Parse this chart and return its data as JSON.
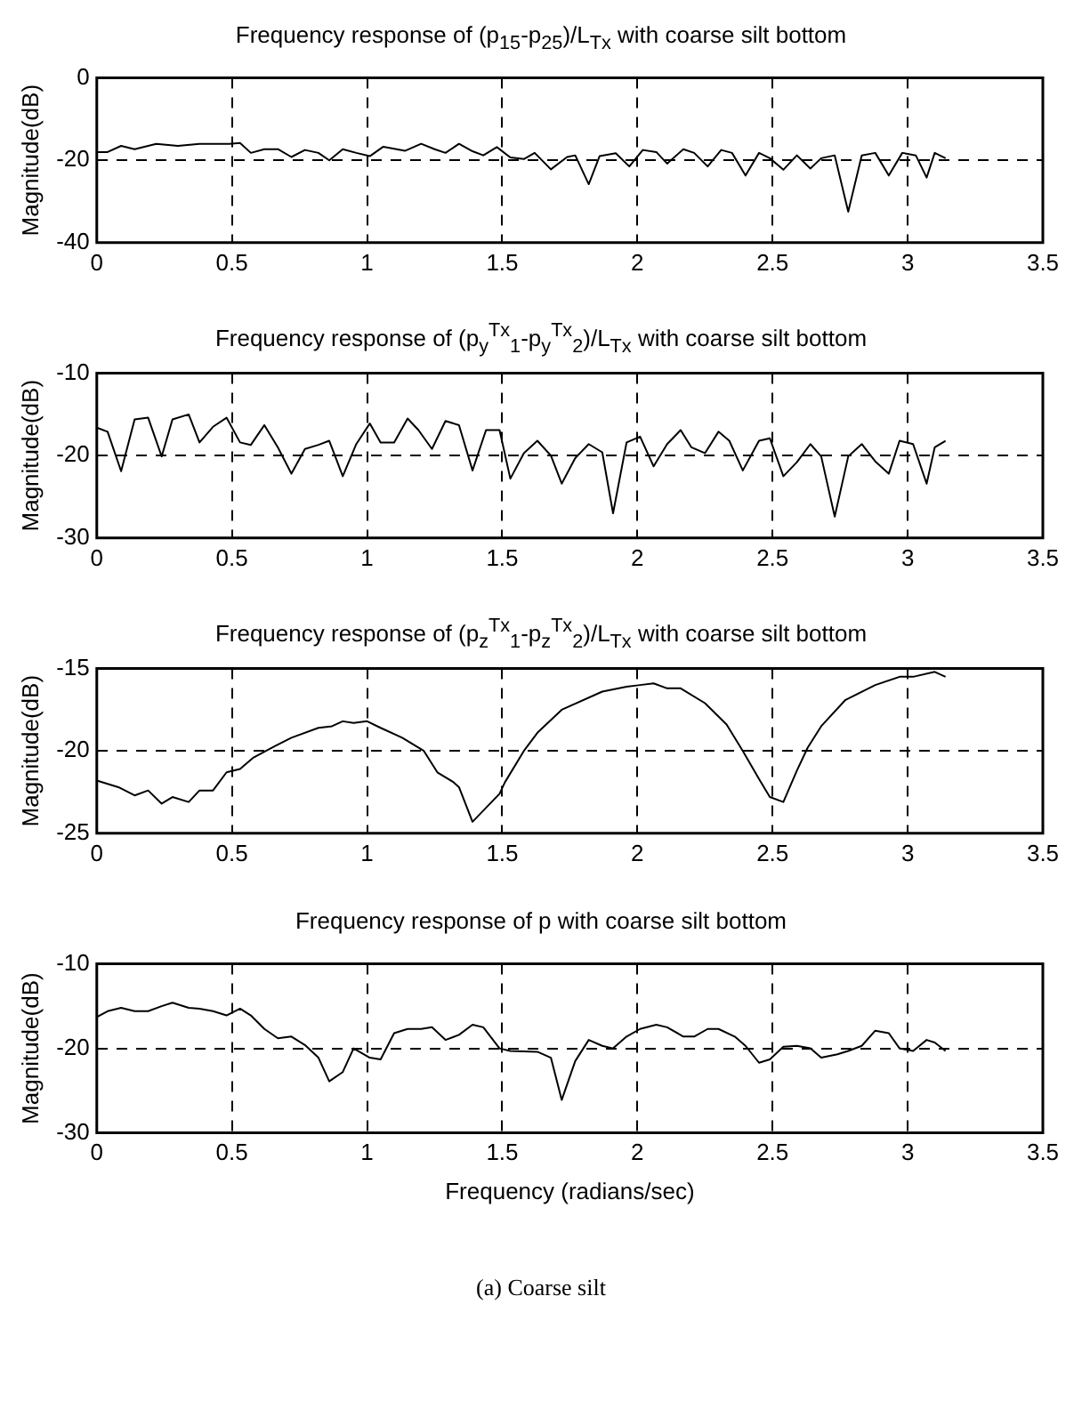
{
  "chart_data": [
    {
      "type": "line",
      "title": "Frequency response of (p$_{15}$-p$_{25}$)/L$_{Tx}$ with coarse silt bottom",
      "ylabel": "Magnitude(dB)",
      "xlim": [
        0,
        3.5
      ],
      "xticks": [
        0,
        0.5,
        1,
        1.5,
        2,
        2.5,
        3,
        3.5
      ],
      "ylim": [
        -40,
        0
      ],
      "yticks": [
        -40,
        -20,
        0
      ],
      "grid": true,
      "legend": false,
      "marker": "none",
      "line_style": "solid",
      "series": [
        {
          "color": "#000000",
          "x": [
            0,
            0.04,
            0.09,
            0.14,
            0.22,
            0.3,
            0.38,
            0.49,
            0.53,
            0.57,
            0.62,
            0.67,
            0.72,
            0.77,
            0.82,
            0.86,
            0.91,
            0.96,
            1.01,
            1.06,
            1.14,
            1.2,
            1.25,
            1.29,
            1.34,
            1.39,
            1.43,
            1.48,
            1.53,
            1.58,
            1.62,
            1.68,
            1.74,
            1.77,
            1.82,
            1.86,
            1.92,
            1.97,
            2.02,
            2.07,
            2.11,
            2.17,
            2.21,
            2.26,
            2.31,
            2.35,
            2.4,
            2.45,
            2.49,
            2.54,
            2.59,
            2.64,
            2.68,
            2.73,
            2.78,
            2.83,
            2.88,
            2.93,
            2.98,
            3.03,
            3.07,
            3.1,
            3.14
          ],
          "values": [
            -18,
            -18,
            -16.5,
            -17.3,
            -16,
            -16.5,
            -16,
            -16,
            -15.8,
            -18.2,
            -17.3,
            -17.3,
            -19.2,
            -17.5,
            -18.2,
            -20,
            -17.3,
            -18.2,
            -19,
            -16.7,
            -17.7,
            -16,
            -17.3,
            -18.2,
            -16,
            -17.8,
            -18.8,
            -16.8,
            -19.3,
            -19.7,
            -18.2,
            -22.2,
            -19.2,
            -18.8,
            -25.8,
            -19,
            -18.3,
            -21.5,
            -17.5,
            -18,
            -20.8,
            -17.3,
            -18.2,
            -21.5,
            -17.5,
            -18.2,
            -23.7,
            -18.2,
            -19.5,
            -22.3,
            -18.8,
            -22,
            -19.5,
            -18.8,
            -32.5,
            -18.8,
            -18.2,
            -23.7,
            -18.2,
            -18.8,
            -24.2,
            -18.2,
            -19.5
          ]
        }
      ]
    },
    {
      "type": "line",
      "title": "Frequency response of (p$_{y}$$^{Tx}$$_{1}$-p$_{y}$$^{Tx}$$_{2}$)/L$_{Tx}$ with coarse silt bottom",
      "ylabel": "Magnitude(dB)",
      "xlim": [
        0,
        3.5
      ],
      "xticks": [
        0,
        0.5,
        1,
        1.5,
        2,
        2.5,
        3,
        3.5
      ],
      "ylim": [
        -30,
        -10
      ],
      "yticks": [
        -30,
        -20,
        -10
      ],
      "grid": true,
      "legend": false,
      "marker": "none",
      "line_style": "solid",
      "series": [
        {
          "color": "#000000",
          "x": [
            0,
            0.04,
            0.09,
            0.14,
            0.19,
            0.24,
            0.28,
            0.34,
            0.38,
            0.43,
            0.48,
            0.53,
            0.57,
            0.62,
            0.67,
            0.72,
            0.77,
            0.82,
            0.86,
            0.91,
            0.96,
            1.01,
            1.05,
            1.1,
            1.15,
            1.19,
            1.24,
            1.29,
            1.34,
            1.39,
            1.44,
            1.49,
            1.53,
            1.58,
            1.63,
            1.68,
            1.72,
            1.77,
            1.82,
            1.87,
            1.91,
            1.96,
            2.01,
            2.06,
            2.11,
            2.16,
            2.2,
            2.25,
            2.3,
            2.34,
            2.39,
            2.45,
            2.49,
            2.54,
            2.59,
            2.64,
            2.68,
            2.73,
            2.78,
            2.83,
            2.88,
            2.93,
            2.97,
            3.02,
            3.07,
            3.1,
            3.14
          ],
          "values": [
            -16.6,
            -17.1,
            -21.9,
            -15.6,
            -15.4,
            -20.1,
            -15.6,
            -15,
            -18.4,
            -16.5,
            -15.4,
            -18.4,
            -18.7,
            -16.3,
            -19,
            -22.2,
            -19.2,
            -18.7,
            -18.2,
            -22.5,
            -18.6,
            -16.1,
            -18.4,
            -18.4,
            -15.5,
            -16.9,
            -19.2,
            -15.8,
            -16.3,
            -21.8,
            -16.9,
            -16.9,
            -22.8,
            -19.7,
            -18.2,
            -20,
            -23.4,
            -20.3,
            -18.6,
            -19.6,
            -27,
            -18.4,
            -17.7,
            -21.3,
            -18.6,
            -16.9,
            -19,
            -19.7,
            -17.1,
            -18.2,
            -21.8,
            -18.2,
            -17.9,
            -22.5,
            -20.8,
            -18.6,
            -20.1,
            -27.4,
            -20.1,
            -18.6,
            -20.7,
            -22.2,
            -18.2,
            -18.6,
            -23.4,
            -19,
            -18.2
          ]
        }
      ]
    },
    {
      "type": "line",
      "title": "Frequency response of (p$_{z}$$^{Tx}$$_{1}$-p$_{z}$$^{Tx}$$_{2}$)/L$_{Tx}$ with coarse silt bottom",
      "ylabel": "Magnitude(dB)",
      "xlim": [
        0,
        3.5
      ],
      "xticks": [
        0,
        0.5,
        1,
        1.5,
        2,
        2.5,
        3,
        3.5
      ],
      "ylim": [
        -25,
        -15
      ],
      "yticks": [
        -25,
        -20,
        -15
      ],
      "grid": true,
      "legend": false,
      "marker": "none",
      "line_style": "solid",
      "series": [
        {
          "color": "#000000",
          "x": [
            0,
            0.08,
            0.14,
            0.19,
            0.24,
            0.28,
            0.34,
            0.38,
            0.43,
            0.48,
            0.53,
            0.58,
            0.66,
            0.72,
            0.82,
            0.87,
            0.91,
            0.95,
            1,
            1.05,
            1.13,
            1.21,
            1.26,
            1.32,
            1.34,
            1.39,
            1.49,
            1.51,
            1.58,
            1.63,
            1.72,
            1.87,
            1.96,
            2.01,
            2.06,
            2.11,
            2.16,
            2.25,
            2.33,
            2.39,
            2.45,
            2.49,
            2.54,
            2.59,
            2.63,
            2.68,
            2.77,
            2.88,
            2.97,
            3.02,
            3.1,
            3.14
          ],
          "values": [
            -21.8,
            -22.2,
            -22.7,
            -22.4,
            -23.2,
            -22.8,
            -23.1,
            -22.4,
            -22.4,
            -21.3,
            -21.1,
            -20.4,
            -19.7,
            -19.2,
            -18.6,
            -18.5,
            -18.2,
            -18.3,
            -18.2,
            -18.6,
            -19.2,
            -20,
            -21.3,
            -21.9,
            -22.2,
            -24.3,
            -22.6,
            -21.9,
            -20,
            -18.9,
            -17.5,
            -16.4,
            -16.1,
            -16,
            -15.9,
            -16.2,
            -16.2,
            -17.1,
            -18.4,
            -20,
            -21.7,
            -22.8,
            -23.1,
            -21.2,
            -19.8,
            -18.5,
            -16.9,
            -16,
            -15.5,
            -15.5,
            -15.2,
            -15.5
          ]
        }
      ]
    },
    {
      "type": "line",
      "title": "Frequency response of p with coarse silt bottom",
      "xlabel": "Frequency (radians/sec)",
      "ylabel": "Magnitude(dB)",
      "annotations": [
        "(a) Coarse silt"
      ],
      "xlim": [
        0,
        3.5
      ],
      "xticks": [
        0,
        0.5,
        1,
        1.5,
        2,
        2.5,
        3,
        3.5
      ],
      "ylim": [
        -30,
        -10
      ],
      "yticks": [
        -30,
        -20,
        -10
      ],
      "grid": true,
      "legend": false,
      "marker": "none",
      "line_style": "solid",
      "series": [
        {
          "color": "#000000",
          "x": [
            0,
            0.04,
            0.09,
            0.14,
            0.19,
            0.24,
            0.28,
            0.34,
            0.38,
            0.43,
            0.48,
            0.53,
            0.57,
            0.62,
            0.67,
            0.72,
            0.77,
            0.82,
            0.86,
            0.91,
            0.95,
            1.01,
            1.05,
            1.1,
            1.15,
            1.2,
            1.24,
            1.29,
            1.34,
            1.39,
            1.43,
            1.49,
            1.53,
            1.63,
            1.68,
            1.72,
            1.77,
            1.82,
            1.87,
            1.91,
            1.96,
            2.01,
            2.07,
            2.11,
            2.17,
            2.21,
            2.26,
            2.3,
            2.36,
            2.4,
            2.45,
            2.49,
            2.54,
            2.59,
            2.64,
            2.68,
            2.74,
            2.78,
            2.83,
            2.88,
            2.93,
            2.97,
            3.02,
            3.07,
            3.1,
            3.14
          ],
          "values": [
            -16.3,
            -15.6,
            -15.2,
            -15.6,
            -15.6,
            -15,
            -14.6,
            -15.2,
            -15.3,
            -15.6,
            -16.1,
            -15.3,
            -16.1,
            -17.7,
            -18.8,
            -18.6,
            -19.6,
            -21.1,
            -23.9,
            -22.8,
            -20,
            -21.1,
            -21.3,
            -18.2,
            -17.7,
            -17.7,
            -17.5,
            -19,
            -18.4,
            -17.2,
            -17.5,
            -20,
            -20.3,
            -20.4,
            -21.1,
            -26.1,
            -21.5,
            -19,
            -19.7,
            -20,
            -18.6,
            -17.7,
            -17.2,
            -17.5,
            -18.6,
            -18.6,
            -17.7,
            -17.7,
            -18.6,
            -19.7,
            -21.7,
            -21.3,
            -19.8,
            -19.7,
            -20,
            -21.1,
            -20.7,
            -20.3,
            -19.7,
            -17.9,
            -18.2,
            -20,
            -20.3,
            -19,
            -19.3,
            -20.3
          ]
        }
      ]
    }
  ]
}
